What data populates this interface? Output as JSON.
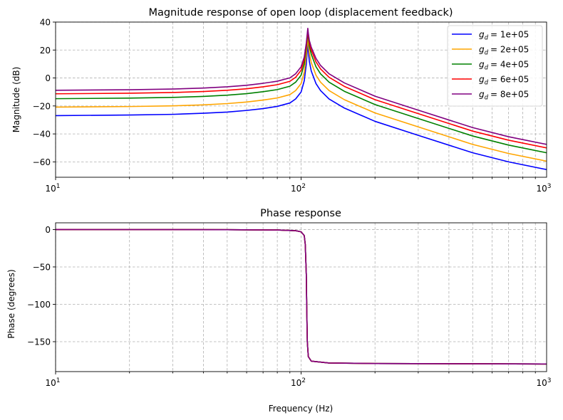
{
  "chart_data": [
    {
      "type": "line",
      "title": "Magnitude response of open loop (displacement feedback)",
      "xlabel": "",
      "ylabel": "Magnitude (dB)",
      "xscale": "log",
      "xlim": [
        10,
        1000
      ],
      "ylim": [
        -71,
        40
      ],
      "xticks": [
        10,
        100,
        1000
      ],
      "xtick_labels": [
        {
          "base": "10",
          "exp": "1"
        },
        {
          "base": "10",
          "exp": "2"
        },
        {
          "base": "10",
          "exp": "3"
        }
      ],
      "yticks": [
        -60,
        -40,
        -20,
        0,
        20,
        40
      ],
      "ytick_labels": [
        "−60",
        "−40",
        "−20",
        "0",
        "20",
        "40"
      ],
      "grid": true,
      "legend_position": "upper-right",
      "series": [
        {
          "name": "= 1e+05",
          "label_symbol": "g",
          "label_sub": "d",
          "color": "#0000ff",
          "points": [
            [
              10,
              -26.9
            ],
            [
              20,
              -26.5
            ],
            [
              30,
              -26.0
            ],
            [
              40,
              -25.2
            ],
            [
              50,
              -24.4
            ],
            [
              60,
              -23.2
            ],
            [
              70,
              -21.9
            ],
            [
              80,
              -20.3
            ],
            [
              90,
              -17.9
            ],
            [
              95,
              -15.0
            ],
            [
              100,
              -10.0
            ],
            [
              103,
              -2.0
            ],
            [
              105,
              10.0
            ],
            [
              106,
              20.0
            ],
            [
              106.5,
              25.0
            ],
            [
              107,
              20.0
            ],
            [
              108,
              12.0
            ],
            [
              110,
              5.0
            ],
            [
              115,
              -4.0
            ],
            [
              120,
              -9.0
            ],
            [
              130,
              -15.0
            ],
            [
              150,
              -21.5
            ],
            [
              200,
              -31.0
            ],
            [
              300,
              -41.0
            ],
            [
              500,
              -53.5
            ],
            [
              700,
              -60.0
            ],
            [
              1000,
              -65.5
            ]
          ]
        },
        {
          "name": "= 2e+05",
          "label_symbol": "g",
          "label_sub": "d",
          "color": "#ffa500",
          "points": [
            [
              10,
              -20.8
            ],
            [
              20,
              -20.4
            ],
            [
              30,
              -19.9
            ],
            [
              40,
              -19.2
            ],
            [
              50,
              -18.3
            ],
            [
              60,
              -17.2
            ],
            [
              70,
              -15.8
            ],
            [
              80,
              -14.3
            ],
            [
              90,
              -11.9
            ],
            [
              95,
              -9.0
            ],
            [
              100,
              -4.0
            ],
            [
              103,
              4.0
            ],
            [
              105,
              16.0
            ],
            [
              106,
              25.0
            ],
            [
              106.5,
              30.0
            ],
            [
              107,
              25.0
            ],
            [
              108,
              18.0
            ],
            [
              110,
              11.0
            ],
            [
              115,
              2.0
            ],
            [
              120,
              -3.0
            ],
            [
              130,
              -9.0
            ],
            [
              150,
              -15.5
            ],
            [
              200,
              -25.0
            ],
            [
              300,
              -35.0
            ],
            [
              500,
              -47.5
            ],
            [
              700,
              -54.0
            ],
            [
              1000,
              -59.5
            ]
          ]
        },
        {
          "name": "= 4e+05",
          "label_symbol": "g",
          "label_sub": "d",
          "color": "#008000",
          "points": [
            [
              10,
              -14.8
            ],
            [
              20,
              -14.4
            ],
            [
              30,
              -13.9
            ],
            [
              40,
              -13.2
            ],
            [
              50,
              -12.3
            ],
            [
              60,
              -11.2
            ],
            [
              70,
              -9.8
            ],
            [
              80,
              -8.3
            ],
            [
              90,
              -5.9
            ],
            [
              95,
              -3.0
            ],
            [
              100,
              2.0
            ],
            [
              103,
              10.0
            ],
            [
              105,
              21.0
            ],
            [
              106,
              29.0
            ],
            [
              106.5,
              33.0
            ],
            [
              107,
              29.0
            ],
            [
              108,
              23.0
            ],
            [
              110,
              17.0
            ],
            [
              115,
              8.0
            ],
            [
              120,
              3.0
            ],
            [
              130,
              -3.0
            ],
            [
              150,
              -9.5
            ],
            [
              200,
              -19.0
            ],
            [
              300,
              -29.0
            ],
            [
              500,
              -41.5
            ],
            [
              700,
              -48.0
            ],
            [
              1000,
              -53.5
            ]
          ]
        },
        {
          "name": "= 6e+05",
          "label_symbol": "g",
          "label_sub": "d",
          "color": "#ff0000",
          "points": [
            [
              10,
              -11.3
            ],
            [
              20,
              -10.9
            ],
            [
              30,
              -10.4
            ],
            [
              40,
              -9.7
            ],
            [
              50,
              -8.8
            ],
            [
              60,
              -7.7
            ],
            [
              70,
              -6.3
            ],
            [
              80,
              -4.8
            ],
            [
              90,
              -2.4
            ],
            [
              95,
              0.5
            ],
            [
              100,
              5.5
            ],
            [
              103,
              13.0
            ],
            [
              105,
              23.0
            ],
            [
              106,
              30.5
            ],
            [
              106.5,
              34.5
            ],
            [
              107,
              30.5
            ],
            [
              108,
              25.0
            ],
            [
              110,
              20.0
            ],
            [
              115,
              11.5
            ],
            [
              120,
              6.5
            ],
            [
              130,
              0.5
            ],
            [
              150,
              -6.0
            ],
            [
              200,
              -15.5
            ],
            [
              300,
              -25.5
            ],
            [
              500,
              -38.0
            ],
            [
              700,
              -44.5
            ],
            [
              1000,
              -50.0
            ]
          ]
        },
        {
          "name": "= 8e+05",
          "label_symbol": "g",
          "label_sub": "d",
          "color": "#800080",
          "points": [
            [
              10,
              -8.8
            ],
            [
              20,
              -8.4
            ],
            [
              30,
              -7.9
            ],
            [
              40,
              -7.2
            ],
            [
              50,
              -6.3
            ],
            [
              60,
              -5.2
            ],
            [
              70,
              -3.8
            ],
            [
              80,
              -2.3
            ],
            [
              90,
              0.1
            ],
            [
              95,
              3.0
            ],
            [
              100,
              8.0
            ],
            [
              103,
              15.0
            ],
            [
              105,
              25.0
            ],
            [
              106,
              32.0
            ],
            [
              106.5,
              35.5
            ],
            [
              107,
              32.0
            ],
            [
              108,
              27.0
            ],
            [
              110,
              22.0
            ],
            [
              115,
              14.0
            ],
            [
              120,
              9.0
            ],
            [
              130,
              3.0
            ],
            [
              150,
              -3.5
            ],
            [
              200,
              -13.0
            ],
            [
              300,
              -23.0
            ],
            [
              500,
              -35.5
            ],
            [
              700,
              -42.0
            ],
            [
              1000,
              -47.5
            ]
          ]
        }
      ]
    },
    {
      "type": "line",
      "title": "Phase response",
      "xlabel": "Frequency (Hz)",
      "ylabel": "Phase (degrees)",
      "xscale": "log",
      "xlim": [
        10,
        1000
      ],
      "ylim": [
        -190,
        9
      ],
      "xticks": [
        10,
        100,
        1000
      ],
      "xtick_labels": [
        {
          "base": "10",
          "exp": "1"
        },
        {
          "base": "10",
          "exp": "2"
        },
        {
          "base": "10",
          "exp": "3"
        }
      ],
      "yticks": [
        -150,
        -100,
        -50,
        0
      ],
      "ytick_labels": [
        "−150",
        "−100",
        "−50",
        "0"
      ],
      "grid": true,
      "series": [
        {
          "color": "#0000ff",
          "points": [
            [
              10,
              0
            ],
            [
              50,
              -0.2
            ],
            [
              80,
              -0.6
            ],
            [
              95,
              -1.5
            ],
            [
              100,
              -3
            ],
            [
              103,
              -8
            ],
            [
              104,
              -20
            ],
            [
              105,
              -60
            ],
            [
              105.5,
              -110
            ],
            [
              106,
              -150
            ],
            [
              107,
              -170
            ],
            [
              110,
              -176
            ],
            [
              130,
              -178.5
            ],
            [
              200,
              -179.2
            ],
            [
              1000,
              -179.8
            ]
          ]
        },
        {
          "color": "#ffa500",
          "points": [
            [
              10,
              0
            ],
            [
              50,
              -0.2
            ],
            [
              80,
              -0.6
            ],
            [
              95,
              -1.5
            ],
            [
              100,
              -3
            ],
            [
              103,
              -8
            ],
            [
              104,
              -20
            ],
            [
              105,
              -60
            ],
            [
              105.5,
              -110
            ],
            [
              106,
              -150
            ],
            [
              107,
              -170
            ],
            [
              110,
              -176
            ],
            [
              130,
              -178.5
            ],
            [
              200,
              -179.2
            ],
            [
              1000,
              -179.8
            ]
          ]
        },
        {
          "color": "#008000",
          "points": [
            [
              10,
              0
            ],
            [
              50,
              -0.2
            ],
            [
              80,
              -0.6
            ],
            [
              95,
              -1.5
            ],
            [
              100,
              -3
            ],
            [
              103,
              -8
            ],
            [
              104,
              -20
            ],
            [
              105,
              -60
            ],
            [
              105.5,
              -110
            ],
            [
              106,
              -150
            ],
            [
              107,
              -170
            ],
            [
              110,
              -176
            ],
            [
              130,
              -178.5
            ],
            [
              200,
              -179.2
            ],
            [
              1000,
              -179.8
            ]
          ]
        },
        {
          "color": "#ff0000",
          "points": [
            [
              10,
              0
            ],
            [
              50,
              -0.2
            ],
            [
              80,
              -0.6
            ],
            [
              95,
              -1.5
            ],
            [
              100,
              -3
            ],
            [
              103,
              -8
            ],
            [
              104,
              -20
            ],
            [
              105,
              -60
            ],
            [
              105.5,
              -110
            ],
            [
              106,
              -150
            ],
            [
              107,
              -170
            ],
            [
              110,
              -176
            ],
            [
              130,
              -178.5
            ],
            [
              200,
              -179.2
            ],
            [
              1000,
              -179.8
            ]
          ]
        },
        {
          "color": "#800080",
          "points": [
            [
              10,
              0
            ],
            [
              50,
              -0.2
            ],
            [
              80,
              -0.6
            ],
            [
              95,
              -1.5
            ],
            [
              100,
              -3
            ],
            [
              103,
              -8
            ],
            [
              104,
              -20
            ],
            [
              105,
              -60
            ],
            [
              105.5,
              -110
            ],
            [
              106,
              -150
            ],
            [
              107,
              -170
            ],
            [
              110,
              -176
            ],
            [
              130,
              -178.5
            ],
            [
              200,
              -179.2
            ],
            [
              1000,
              -179.8
            ]
          ]
        }
      ]
    }
  ]
}
